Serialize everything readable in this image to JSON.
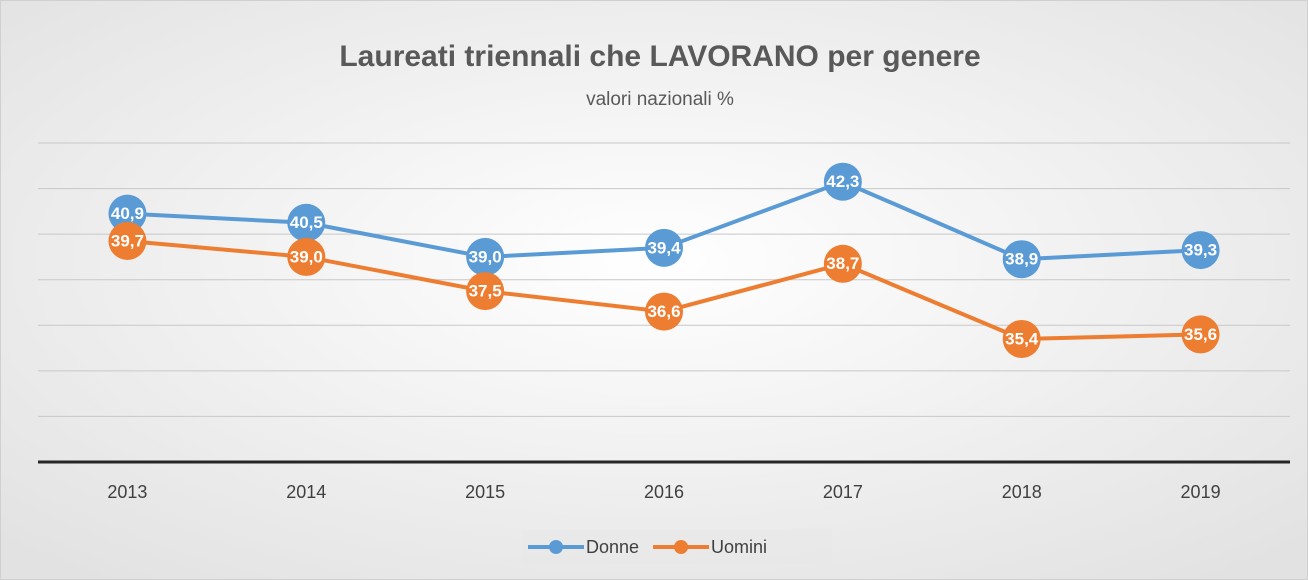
{
  "chart_data": {
    "type": "line",
    "title": "Laureati triennali  che LAVORANO per genere",
    "subtitle": "valori nazionali %",
    "categories": [
      "2013",
      "2014",
      "2015",
      "2016",
      "2017",
      "2018",
      "2019"
    ],
    "series": [
      {
        "name": "Donne",
        "color": "#5b9bd5",
        "values": [
          40.9,
          40.5,
          39.0,
          39.4,
          42.3,
          38.9,
          39.3
        ],
        "value_labels": [
          "40,9",
          "40,5",
          "39,0",
          "39,4",
          "42,3",
          "38,9",
          "39,3"
        ]
      },
      {
        "name": "Uomini",
        "color": "#ed7d31",
        "values": [
          39.7,
          39.0,
          37.5,
          36.6,
          38.7,
          35.4,
          35.6
        ],
        "value_labels": [
          "39,7",
          "39,0",
          "37,5",
          "36,6",
          "38,7",
          "35,4",
          "35,6"
        ]
      }
    ],
    "ylim": [
      30,
      44
    ],
    "yticks": [
      30,
      32,
      34,
      36,
      38,
      40,
      42,
      44
    ],
    "grid": true,
    "legend": "bottom"
  }
}
